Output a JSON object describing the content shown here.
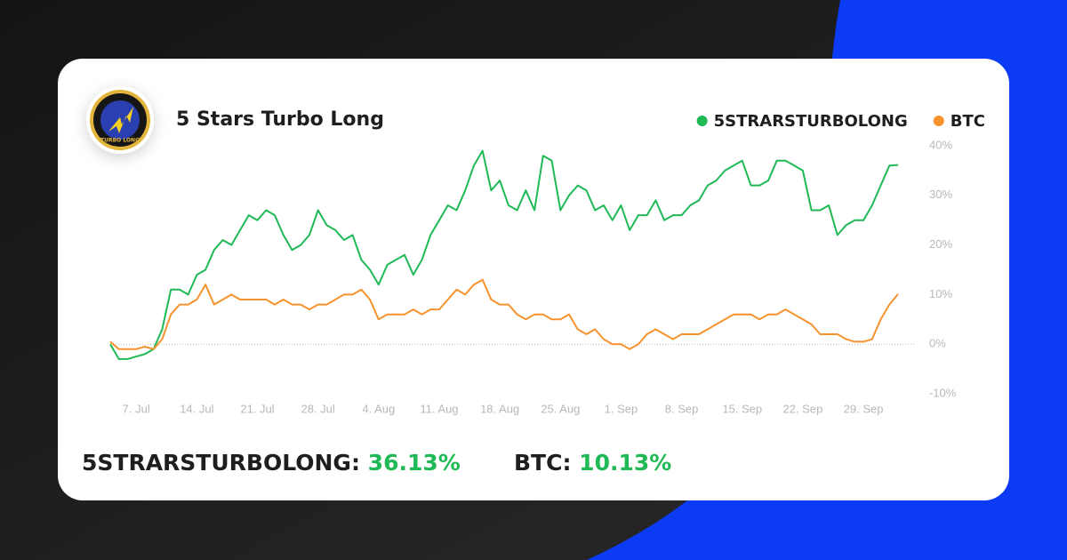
{
  "header": {
    "title": "5 Stars Turbo Long",
    "logo_text": "TURBO LONG"
  },
  "chart_data": {
    "type": "line",
    "x": [
      "4. Jul",
      "5. Jul",
      "6. Jul",
      "7. Jul",
      "8. Jul",
      "9. Jul",
      "10. Jul",
      "11. Jul",
      "12. Jul",
      "13. Jul",
      "14. Jul",
      "15. Jul",
      "16. Jul",
      "17. Jul",
      "18. Jul",
      "19. Jul",
      "20. Jul",
      "21. Jul",
      "22. Jul",
      "23. Jul",
      "24. Jul",
      "25. Jul",
      "26. Jul",
      "27. Jul",
      "28. Jul",
      "29. Jul",
      "30. Jul",
      "31. Jul",
      "1. Aug",
      "2. Aug",
      "3. Aug",
      "4. Aug",
      "5. Aug",
      "6. Aug",
      "7. Aug",
      "8. Aug",
      "9. Aug",
      "10. Aug",
      "11. Aug",
      "12. Aug",
      "13. Aug",
      "14. Aug",
      "15. Aug",
      "16. Aug",
      "17. Aug",
      "18. Aug",
      "19. Aug",
      "20. Aug",
      "21. Aug",
      "22. Aug",
      "23. Aug",
      "24. Aug",
      "25. Aug",
      "26. Aug",
      "27. Aug",
      "28. Aug",
      "29. Aug",
      "30. Aug",
      "31. Aug",
      "1. Sep",
      "2. Sep",
      "3. Sep",
      "4. Sep",
      "5. Sep",
      "6. Sep",
      "7. Sep",
      "8. Sep",
      "9. Sep",
      "10. Sep",
      "11. Sep",
      "12. Sep",
      "13. Sep",
      "14. Sep",
      "15. Sep",
      "16. Sep",
      "17. Sep",
      "18. Sep",
      "19. Sep",
      "20. Sep",
      "21. Sep",
      "22. Sep",
      "23. Sep",
      "24. Sep",
      "25. Sep",
      "26. Sep",
      "27. Sep",
      "28. Sep",
      "29. Sep",
      "30. Sep",
      "1. Oct",
      "2. Oct",
      "3. Oct"
    ],
    "xticks": [
      "7. Jul",
      "14. Jul",
      "21. Jul",
      "28. Jul",
      "4. Aug",
      "11. Aug",
      "18. Aug",
      "25. Aug",
      "1. Sep",
      "8. Sep",
      "15. Sep",
      "22. Sep",
      "29. Sep"
    ],
    "series": [
      {
        "name": "5STRARSTURBOLONG",
        "color": "#1fb955",
        "values": [
          0,
          -3,
          -3,
          -2.5,
          -2,
          -1,
          3,
          11,
          11,
          10,
          14,
          15,
          19,
          21,
          20,
          23,
          26,
          25,
          27,
          26,
          22,
          19,
          20,
          22,
          27,
          24,
          23,
          21,
          22,
          17,
          15,
          12,
          16,
          17,
          18,
          14,
          17,
          22,
          25,
          28,
          27,
          31,
          36,
          39,
          31,
          33,
          28,
          27,
          31,
          27,
          38,
          37,
          27,
          30,
          32,
          31,
          27,
          28,
          25,
          28,
          23,
          26,
          26,
          29,
          25,
          26,
          26,
          28,
          29,
          32,
          33,
          35,
          36,
          37,
          32,
          32,
          33,
          37,
          37,
          36,
          35,
          27,
          27,
          28,
          22,
          24,
          25,
          25,
          28,
          32,
          36,
          36.13
        ]
      },
      {
        "name": "BTC",
        "color": "#f7932e",
        "values": [
          0.5,
          -1,
          -1,
          -1,
          -0.5,
          -1,
          1,
          6,
          8,
          8,
          9,
          12,
          8,
          9,
          10,
          9,
          9,
          9,
          9,
          8,
          9,
          8,
          8,
          7,
          8,
          8,
          9,
          10,
          10,
          11,
          9,
          5,
          6,
          6,
          6,
          7,
          6,
          7,
          7,
          9,
          11,
          10,
          12,
          13,
          9,
          8,
          8,
          6,
          5,
          6,
          6,
          5,
          5,
          6,
          3,
          2,
          3,
          1,
          0,
          0,
          -1,
          0,
          2,
          3,
          2,
          1,
          2,
          2,
          2,
          3,
          4,
          5,
          6,
          6,
          6,
          5,
          6,
          6,
          7,
          6,
          5,
          4,
          2,
          2,
          2,
          1,
          0.5,
          0.5,
          1,
          5,
          8,
          10.13
        ]
      }
    ],
    "ylim": [
      -10,
      40
    ],
    "yticks": [
      {
        "value": -10,
        "label": "-10%"
      },
      {
        "value": 0,
        "label": "0%"
      },
      {
        "value": 10,
        "label": "10%"
      },
      {
        "value": 20,
        "label": "20%"
      },
      {
        "value": 30,
        "label": "30%"
      },
      {
        "value": 40,
        "label": "40%"
      }
    ],
    "legend": "top-right"
  },
  "summary": [
    {
      "label": "5STRARSTURBOLONG:",
      "value": "36.13%"
    },
    {
      "label": "BTC:",
      "value": "10.13%"
    }
  ]
}
